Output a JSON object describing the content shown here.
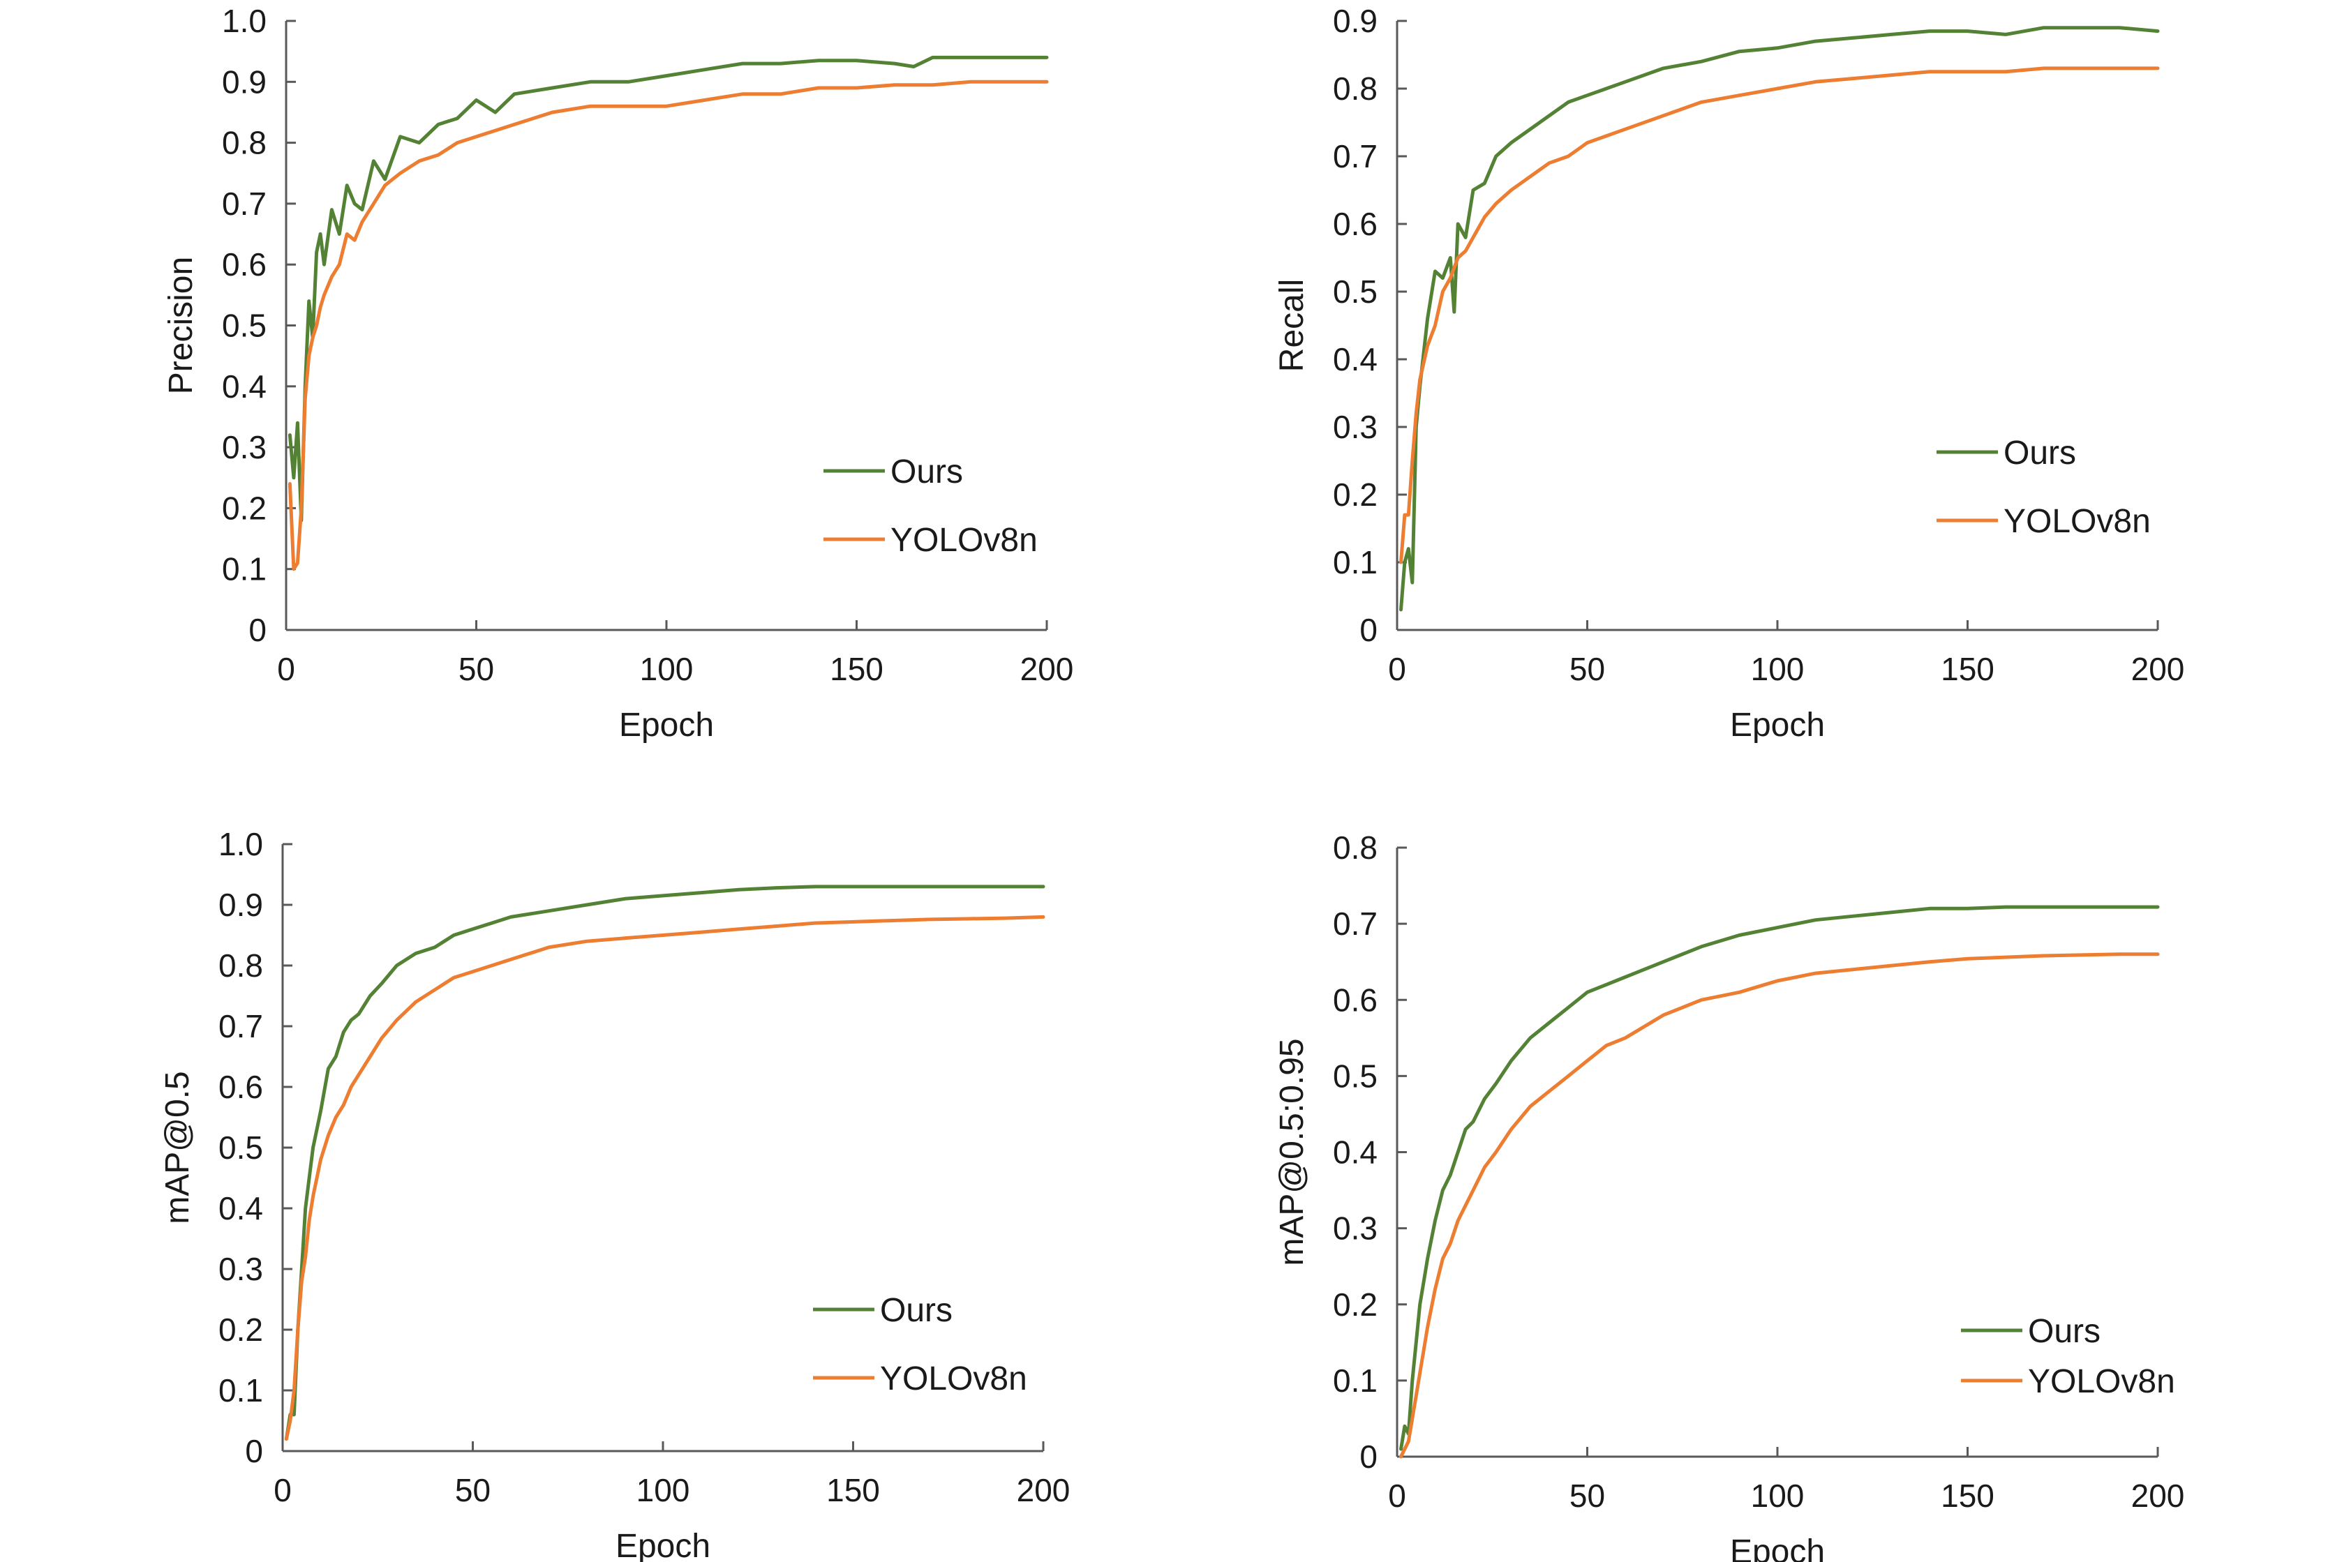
{
  "colors": {
    "ours": "#548235",
    "yolo": "#ED7D31",
    "axis": "#595959"
  },
  "chart_data": [
    {
      "type": "line",
      "xlabel": "Epoch",
      "ylabel": "Precision",
      "xlim": [
        0,
        200
      ],
      "ylim": [
        0,
        1.0
      ],
      "xticks": [
        "0",
        "50",
        "100",
        "150",
        "200"
      ],
      "yticks": [
        "0",
        "0.1",
        "0.2",
        "0.3",
        "0.4",
        "0.5",
        "0.6",
        "0.7",
        "0.8",
        "0.9",
        "1.0"
      ],
      "grid": false,
      "legend_position": "bottom-right",
      "series": [
        {
          "name": "Ours",
          "x": [
            1,
            2,
            3,
            4,
            5,
            6,
            7,
            8,
            9,
            10,
            12,
            14,
            16,
            18,
            20,
            23,
            26,
            30,
            35,
            40,
            45,
            50,
            55,
            60,
            70,
            80,
            90,
            100,
            110,
            120,
            130,
            140,
            150,
            160,
            165,
            170,
            180,
            190,
            200
          ],
          "y": [
            0.32,
            0.25,
            0.34,
            0.18,
            0.4,
            0.54,
            0.48,
            0.62,
            0.65,
            0.6,
            0.69,
            0.65,
            0.73,
            0.7,
            0.69,
            0.77,
            0.74,
            0.81,
            0.8,
            0.83,
            0.84,
            0.87,
            0.85,
            0.88,
            0.89,
            0.9,
            0.9,
            0.91,
            0.92,
            0.93,
            0.93,
            0.935,
            0.935,
            0.93,
            0.925,
            0.94,
            0.94,
            0.94,
            0.94
          ]
        },
        {
          "name": "YOLOv8n",
          "x": [
            1,
            2,
            3,
            4,
            5,
            6,
            7,
            8,
            9,
            10,
            12,
            14,
            16,
            18,
            20,
            23,
            26,
            30,
            35,
            40,
            45,
            50,
            55,
            60,
            70,
            80,
            90,
            100,
            110,
            120,
            130,
            140,
            150,
            160,
            170,
            180,
            190,
            200
          ],
          "y": [
            0.24,
            0.1,
            0.11,
            0.2,
            0.38,
            0.45,
            0.48,
            0.5,
            0.53,
            0.55,
            0.58,
            0.6,
            0.65,
            0.64,
            0.67,
            0.7,
            0.73,
            0.75,
            0.77,
            0.78,
            0.8,
            0.81,
            0.82,
            0.83,
            0.85,
            0.86,
            0.86,
            0.86,
            0.87,
            0.88,
            0.88,
            0.89,
            0.89,
            0.895,
            0.895,
            0.9,
            0.9,
            0.9
          ]
        }
      ]
    },
    {
      "type": "line",
      "xlabel": "Epoch",
      "ylabel": "Recall",
      "xlim": [
        0,
        200
      ],
      "ylim": [
        0,
        0.9
      ],
      "xticks": [
        "0",
        "50",
        "100",
        "150",
        "200"
      ],
      "yticks": [
        "0",
        "0.1",
        "0.2",
        "0.3",
        "0.4",
        "0.5",
        "0.6",
        "0.7",
        "0.8",
        "0.9"
      ],
      "grid": false,
      "legend_position": "bottom-right",
      "series": [
        {
          "name": "Ours",
          "x": [
            1,
            2,
            3,
            4,
            5,
            6,
            8,
            10,
            12,
            14,
            15,
            16,
            18,
            20,
            23,
            26,
            30,
            35,
            40,
            45,
            50,
            55,
            60,
            70,
            80,
            90,
            100,
            110,
            120,
            130,
            140,
            150,
            160,
            170,
            180,
            190,
            200
          ],
          "y": [
            0.03,
            0.1,
            0.12,
            0.07,
            0.3,
            0.36,
            0.46,
            0.53,
            0.52,
            0.55,
            0.47,
            0.6,
            0.58,
            0.65,
            0.66,
            0.7,
            0.72,
            0.74,
            0.76,
            0.78,
            0.79,
            0.8,
            0.81,
            0.83,
            0.84,
            0.855,
            0.86,
            0.87,
            0.875,
            0.88,
            0.885,
            0.885,
            0.88,
            0.89,
            0.89,
            0.89,
            0.885
          ]
        },
        {
          "name": "YOLOv8n",
          "x": [
            1,
            2,
            3,
            4,
            5,
            6,
            8,
            10,
            12,
            14,
            16,
            18,
            20,
            23,
            26,
            30,
            35,
            40,
            45,
            50,
            55,
            60,
            70,
            80,
            90,
            100,
            110,
            120,
            130,
            140,
            150,
            160,
            170,
            180,
            190,
            200
          ],
          "y": [
            0.1,
            0.17,
            0.17,
            0.25,
            0.32,
            0.37,
            0.42,
            0.45,
            0.5,
            0.52,
            0.55,
            0.56,
            0.58,
            0.61,
            0.63,
            0.65,
            0.67,
            0.69,
            0.7,
            0.72,
            0.73,
            0.74,
            0.76,
            0.78,
            0.79,
            0.8,
            0.81,
            0.815,
            0.82,
            0.825,
            0.825,
            0.825,
            0.83,
            0.83,
            0.83,
            0.83
          ]
        }
      ]
    },
    {
      "type": "line",
      "xlabel": "Epoch",
      "ylabel": "mAP@0.5",
      "xlim": [
        0,
        200
      ],
      "ylim": [
        0,
        1.0
      ],
      "xticks": [
        "0",
        "50",
        "100",
        "150",
        "200"
      ],
      "yticks": [
        "0",
        "0.1",
        "0.2",
        "0.3",
        "0.4",
        "0.5",
        "0.6",
        "0.7",
        "0.8",
        "0.9",
        "1.0"
      ],
      "grid": false,
      "legend_position": "bottom-right",
      "series": [
        {
          "name": "Ours",
          "x": [
            1,
            2,
            3,
            4,
            5,
            6,
            7,
            8,
            10,
            12,
            14,
            16,
            18,
            20,
            23,
            26,
            30,
            35,
            40,
            45,
            50,
            55,
            60,
            70,
            80,
            90,
            100,
            110,
            120,
            130,
            140,
            150,
            160,
            170,
            180,
            190,
            200
          ],
          "y": [
            0.02,
            0.06,
            0.06,
            0.2,
            0.3,
            0.4,
            0.45,
            0.5,
            0.56,
            0.63,
            0.65,
            0.69,
            0.71,
            0.72,
            0.75,
            0.77,
            0.8,
            0.82,
            0.83,
            0.85,
            0.86,
            0.87,
            0.88,
            0.89,
            0.9,
            0.91,
            0.915,
            0.92,
            0.925,
            0.928,
            0.93,
            0.93,
            0.93,
            0.93,
            0.93,
            0.93,
            0.93
          ]
        },
        {
          "name": "YOLOv8n",
          "x": [
            1,
            2,
            3,
            4,
            5,
            6,
            7,
            8,
            10,
            12,
            14,
            16,
            18,
            20,
            23,
            26,
            30,
            35,
            40,
            45,
            50,
            55,
            60,
            70,
            80,
            90,
            100,
            110,
            120,
            130,
            140,
            150,
            160,
            170,
            180,
            190,
            200
          ],
          "y": [
            0.02,
            0.05,
            0.1,
            0.2,
            0.28,
            0.32,
            0.38,
            0.42,
            0.48,
            0.52,
            0.55,
            0.57,
            0.6,
            0.62,
            0.65,
            0.68,
            0.71,
            0.74,
            0.76,
            0.78,
            0.79,
            0.8,
            0.81,
            0.83,
            0.84,
            0.845,
            0.85,
            0.855,
            0.86,
            0.865,
            0.87,
            0.872,
            0.874,
            0.876,
            0.877,
            0.878,
            0.88
          ]
        }
      ]
    },
    {
      "type": "line",
      "xlabel": "Epoch",
      "ylabel": "mAP@0.5:0.95",
      "xlim": [
        0,
        200
      ],
      "ylim": [
        0,
        0.8
      ],
      "xticks": [
        "0",
        "50",
        "100",
        "150",
        "200"
      ],
      "yticks": [
        "0",
        "0.1",
        "0.2",
        "0.3",
        "0.4",
        "0.5",
        "0.6",
        "0.7",
        "0.8"
      ],
      "grid": false,
      "legend_position": "bottom-right",
      "series": [
        {
          "name": "Ours",
          "x": [
            1,
            2,
            3,
            4,
            5,
            6,
            7,
            8,
            10,
            12,
            14,
            16,
            18,
            20,
            23,
            26,
            30,
            35,
            40,
            45,
            50,
            55,
            60,
            70,
            80,
            90,
            100,
            110,
            120,
            130,
            140,
            150,
            160,
            170,
            180,
            190,
            200
          ],
          "y": [
            0.01,
            0.04,
            0.03,
            0.1,
            0.15,
            0.2,
            0.23,
            0.26,
            0.31,
            0.35,
            0.37,
            0.4,
            0.43,
            0.44,
            0.47,
            0.49,
            0.52,
            0.55,
            0.57,
            0.59,
            0.61,
            0.62,
            0.63,
            0.65,
            0.67,
            0.685,
            0.695,
            0.705,
            0.71,
            0.715,
            0.72,
            0.72,
            0.722,
            0.722,
            0.722,
            0.722,
            0.722
          ]
        },
        {
          "name": "YOLOv8n",
          "x": [
            1,
            2,
            3,
            4,
            5,
            6,
            7,
            8,
            10,
            12,
            14,
            16,
            18,
            20,
            23,
            26,
            30,
            35,
            40,
            45,
            50,
            55,
            60,
            70,
            80,
            90,
            100,
            110,
            120,
            130,
            140,
            150,
            160,
            170,
            180,
            190,
            200
          ],
          "y": [
            0.0,
            0.01,
            0.02,
            0.05,
            0.08,
            0.11,
            0.14,
            0.17,
            0.22,
            0.26,
            0.28,
            0.31,
            0.33,
            0.35,
            0.38,
            0.4,
            0.43,
            0.46,
            0.48,
            0.5,
            0.52,
            0.54,
            0.55,
            0.58,
            0.6,
            0.61,
            0.625,
            0.635,
            0.64,
            0.645,
            0.65,
            0.654,
            0.656,
            0.658,
            0.659,
            0.66,
            0.66
          ]
        }
      ]
    }
  ]
}
